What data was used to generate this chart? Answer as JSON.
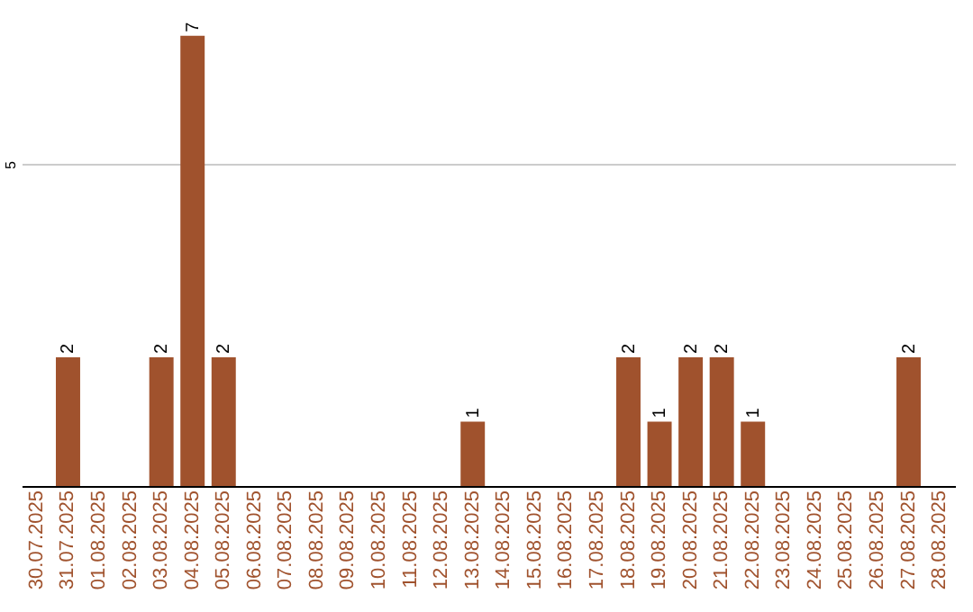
{
  "chart_data": {
    "type": "bar",
    "categories": [
      "30.07.2025",
      "31.07.2025",
      "01.08.2025",
      "02.08.2025",
      "03.08.2025",
      "04.08.2025",
      "05.08.2025",
      "06.08.2025",
      "07.08.2025",
      "08.08.2025",
      "09.08.2025",
      "10.08.2025",
      "11.08.2025",
      "12.08.2025",
      "13.08.2025",
      "14.08.2025",
      "15.08.2025",
      "16.08.2025",
      "17.08.2025",
      "18.08.2025",
      "19.08.2025",
      "20.08.2025",
      "21.08.2025",
      "22.08.2025",
      "23.08.2025",
      "24.08.2025",
      "25.08.2025",
      "26.08.2025",
      "27.08.2025",
      "28.08.2025"
    ],
    "values": [
      0,
      2,
      0,
      0,
      2,
      7,
      2,
      0,
      0,
      0,
      0,
      0,
      0,
      0,
      1,
      0,
      0,
      0,
      0,
      2,
      1,
      2,
      2,
      1,
      0,
      0,
      0,
      0,
      2,
      0
    ],
    "value_labels": [
      null,
      "2",
      null,
      null,
      "2",
      "7",
      "2",
      null,
      null,
      null,
      null,
      null,
      null,
      null,
      "1",
      null,
      null,
      null,
      null,
      "2",
      "1",
      "2",
      "2",
      "1",
      null,
      null,
      null,
      null,
      "2",
      null
    ],
    "color": "#a0522d",
    "ylim": [
      0,
      7.5
    ],
    "yticks": [
      5
    ],
    "grid": "y"
  }
}
